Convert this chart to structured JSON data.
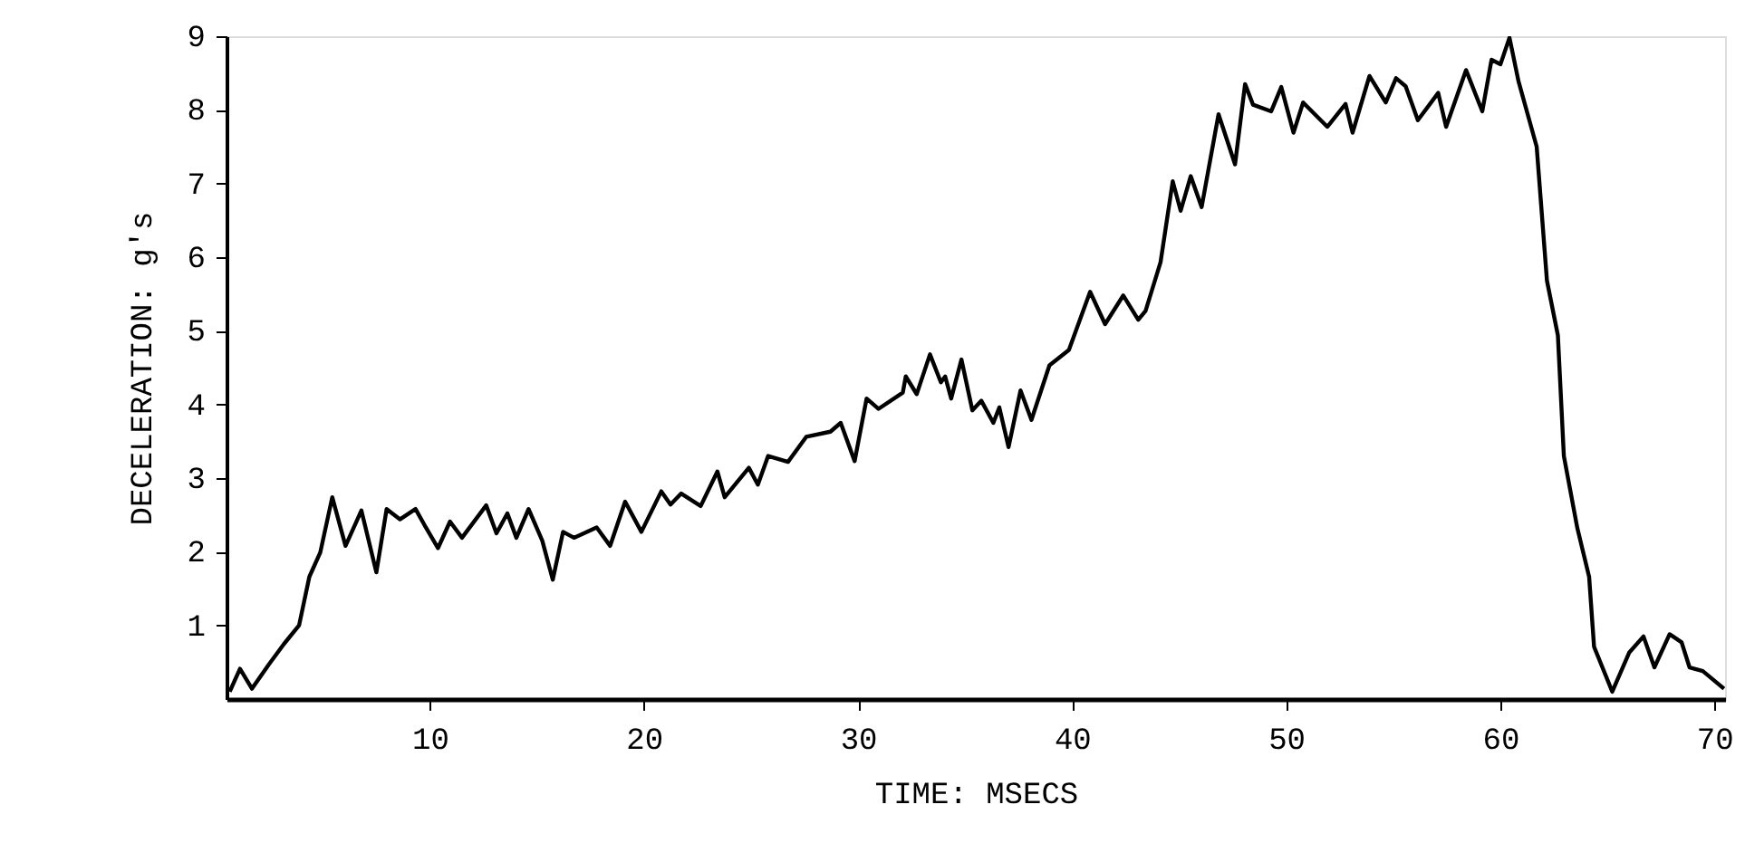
{
  "chart_data": {
    "type": "line",
    "xlabel": "TIME:   MSECS",
    "ylabel": "DECELERATION:   g's",
    "xlim": [
      0.5,
      70.5
    ],
    "ylim": [
      0,
      9
    ],
    "xticks": [
      10,
      20,
      30,
      40,
      50,
      60,
      70
    ],
    "yticks": [
      1,
      2,
      3,
      4,
      5,
      6,
      7,
      8,
      9
    ],
    "grid": false,
    "marker": "none",
    "line_style": "solid",
    "series": [
      {
        "color": "#000000",
        "x": [
          0.65,
          1.13,
          1.69,
          2.48,
          3.19,
          3.89,
          4.37,
          4.88,
          5.44,
          6.06,
          6.8,
          7.5,
          7.98,
          8.6,
          9.33,
          9.81,
          10.38,
          10.94,
          11.5,
          12.63,
          13.11,
          13.62,
          14.04,
          14.61,
          15.25,
          15.74,
          16.22,
          16.73,
          17.79,
          18.42,
          19.12,
          19.88,
          20.81,
          21.24,
          21.74,
          22.65,
          23.43,
          23.77,
          24.9,
          25.32,
          25.8,
          26.73,
          27.58,
          28.71,
          29.19,
          29.84,
          30.4,
          30.96,
          32.09,
          32.23,
          32.74,
          33.36,
          33.87,
          34.07,
          34.35,
          34.83,
          35.34,
          35.76,
          36.32,
          36.6,
          37.03,
          37.59,
          38.1,
          38.94,
          39.85,
          40.84,
          41.54,
          42.39,
          43.09,
          43.43,
          44.13,
          44.7,
          45.07,
          45.54,
          46.05,
          46.84,
          47.61,
          48.08,
          48.45,
          49.3,
          49.77,
          50.34,
          50.79,
          51.92,
          52.77,
          53.1,
          53.89,
          54.65,
          55.13,
          55.58,
          56.15,
          57.1,
          57.47,
          58.4,
          59.16,
          59.59,
          60.01,
          60.43,
          60.85,
          61.7,
          62.18,
          62.69,
          62.97,
          63.6,
          64.15,
          64.38,
          65.23,
          66.02,
          66.69,
          67.2,
          67.91,
          68.47,
          68.84,
          69.46,
          70.45
        ],
        "values": [
          0.1,
          0.41,
          0.14,
          0.47,
          0.75,
          1.0,
          1.66,
          1.99,
          2.74,
          2.08,
          2.56,
          1.72,
          2.58,
          2.44,
          2.58,
          2.33,
          2.05,
          2.41,
          2.19,
          2.63,
          2.25,
          2.52,
          2.19,
          2.58,
          2.15,
          1.62,
          2.27,
          2.19,
          2.33,
          2.08,
          2.68,
          2.27,
          2.82,
          2.64,
          2.79,
          2.62,
          3.09,
          2.74,
          3.14,
          2.91,
          3.3,
          3.22,
          3.56,
          3.63,
          3.75,
          3.23,
          4.08,
          3.94,
          4.16,
          4.38,
          4.14,
          4.68,
          4.3,
          4.38,
          4.08,
          4.61,
          3.92,
          4.05,
          3.75,
          3.96,
          3.42,
          4.19,
          3.79,
          4.53,
          4.74,
          5.53,
          5.09,
          5.48,
          5.15,
          5.27,
          5.93,
          7.03,
          6.63,
          7.1,
          6.68,
          7.94,
          7.26,
          8.35,
          8.07,
          7.98,
          8.31,
          7.69,
          8.1,
          7.77,
          8.08,
          7.69,
          8.46,
          8.1,
          8.43,
          8.32,
          7.86,
          8.23,
          7.77,
          8.54,
          7.98,
          8.68,
          8.62,
          8.98,
          8.39,
          7.5,
          5.68,
          4.94,
          3.3,
          2.32,
          1.66,
          0.71,
          0.1,
          0.63,
          0.85,
          0.43,
          0.88,
          0.77,
          0.43,
          0.38,
          0.14
        ]
      }
    ]
  }
}
